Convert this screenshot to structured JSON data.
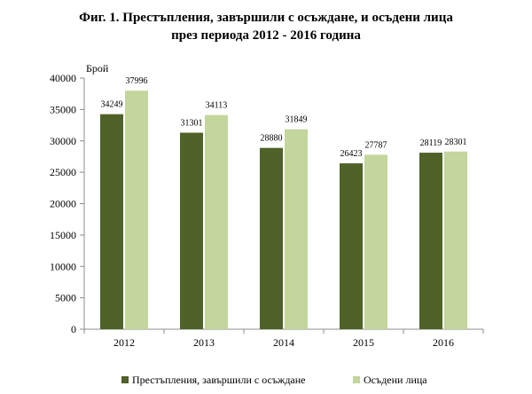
{
  "chart_data": {
    "type": "bar",
    "title_line1": "Фиг. 1. Престъпления, завършили с осъждане, и осъдени  лица",
    "title_line2": "през периода 2012 - 2016 година",
    "ylabel": "Брой",
    "xlabel": "",
    "categories": [
      "2012",
      "2013",
      "2014",
      "2015",
      "2016"
    ],
    "series": [
      {
        "name": "Престъпления, завършили с осъждане",
        "color": "#4f6228",
        "values": [
          34249,
          31301,
          28880,
          26423,
          28119
        ]
      },
      {
        "name": "Осъдени лица",
        "color": "#c3d69b",
        "values": [
          37996,
          34113,
          31849,
          27787,
          28301
        ]
      }
    ],
    "ylim": [
      0,
      40000
    ],
    "yticks": [
      "0",
      "5000",
      "10000",
      "15000",
      "20000",
      "25000",
      "30000",
      "35000",
      "40000"
    ],
    "grid": false,
    "legend_position": "bottom"
  }
}
